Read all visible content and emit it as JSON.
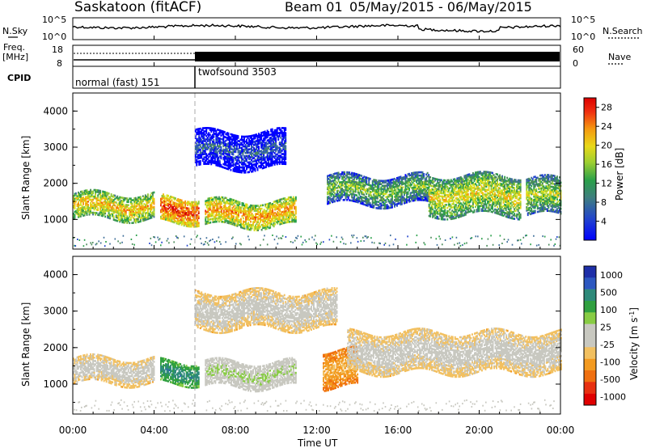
{
  "header": {
    "station": "Saskatoon (fitACF)",
    "beam_label": "Beam 01",
    "date_range": "05/May/2015 - 06/May/2015"
  },
  "summary_panels": {
    "nsky_label": "N.Sky",
    "nsearch_label": "N.Search",
    "noise_ticks_left": [
      "10^5",
      "10^0"
    ],
    "noise_ticks_right": [
      "10^5",
      "10^0"
    ],
    "freq_label": "Freq.",
    "freq_unit": "[MHz]",
    "freq_ticks": [
      "18",
      "8"
    ],
    "nave_label": "Nave",
    "nave_ticks": [
      "60",
      "0"
    ],
    "cpid_label": "CPID",
    "cpid_segments": [
      {
        "name": "normal (fast) 151",
        "start_hour": 0,
        "end_hour": 6
      },
      {
        "name": "twofsound 3503",
        "start_hour": 6,
        "end_hour": 24
      }
    ]
  },
  "power_colorbar": {
    "label": "Power [dB]",
    "ticks": [
      "28",
      "24",
      "20",
      "16",
      "12",
      "8",
      "4"
    ],
    "colors": [
      "#0000ff",
      "#2244cc",
      "#3f6f9a",
      "#4a8a5a",
      "#2aa04a",
      "#8fc83c",
      "#d8e020",
      "#f0c010",
      "#f59a10",
      "#f06010",
      "#e82010",
      "#cc0000"
    ]
  },
  "velocity_colorbar": {
    "label": "Velocity [m s^-1]",
    "ticks": [
      "1000",
      "500",
      "100",
      "25",
      "-25",
      "-100",
      "-500",
      "-1000"
    ],
    "colors": [
      "#1e2fa8",
      "#2d58c0",
      "#2e8a7a",
      "#30a040",
      "#88cc44",
      "#c8c8c0",
      "#c8c8c0",
      "#f2c060",
      "#f39a20",
      "#f07010",
      "#e83010",
      "#e00000"
    ]
  },
  "axes": {
    "ylabel": "Slant Range [km]",
    "xlabel": "Time UT",
    "xticks": [
      "00:00",
      "04:00",
      "08:00",
      "12:00",
      "16:00",
      "20:00",
      "00:00"
    ],
    "yticks": [
      "1000",
      "2000",
      "3000",
      "4000"
    ]
  },
  "chart_data": {
    "type": "heatmap",
    "title": "Saskatoon (fitACF) Beam 01 05/May/2015 - 06/May/2015",
    "xlabel": "Time UT",
    "ylabel": "Slant Range [km]",
    "xlim_hours": [
      0,
      24
    ],
    "ylim_km": [
      180,
      4500
    ],
    "power_range_db": [
      0,
      30
    ],
    "velocity_range_ms": [
      -1000,
      1000
    ],
    "cpid_change_hour": 6,
    "power_echo_regions": [
      {
        "t0": 0.0,
        "t1": 4.0,
        "r0": 1000,
        "r1": 1700,
        "power_db": 20
      },
      {
        "t0": 4.3,
        "t1": 6.2,
        "r0": 900,
        "r1": 1600,
        "power_db": 26
      },
      {
        "t0": 6.5,
        "t1": 11.0,
        "r0": 800,
        "r1": 1500,
        "power_db": 22
      },
      {
        "t0": 6.0,
        "t1": 10.5,
        "r0": 2400,
        "r1": 3400,
        "power_db": 6
      },
      {
        "t0": 12.5,
        "t1": 17.5,
        "r0": 1400,
        "r1": 2200,
        "power_db": 14
      },
      {
        "t0": 17.5,
        "t1": 22.0,
        "r0": 1100,
        "r1": 2200,
        "power_db": 18
      },
      {
        "t0": 22.3,
        "t1": 24.0,
        "r0": 1100,
        "r1": 2100,
        "power_db": 16
      }
    ],
    "velocity_echo_regions": [
      {
        "t0": 0.0,
        "t1": 4.0,
        "r0": 1000,
        "r1": 1700,
        "velocity_ms": 0
      },
      {
        "t0": 4.3,
        "t1": 6.2,
        "r0": 1000,
        "r1": 1600,
        "velocity_ms": 600
      },
      {
        "t0": 6.5,
        "t1": 11.0,
        "r0": 900,
        "r1": 1600,
        "velocity_ms": 200
      },
      {
        "t0": 12.3,
        "t1": 14.0,
        "r0": 900,
        "r1": 1900,
        "velocity_ms": -300
      },
      {
        "t0": 13.5,
        "t1": 24.0,
        "r0": 1300,
        "r1": 2400,
        "velocity_ms": 0
      },
      {
        "t0": 6.0,
        "t1": 13.0,
        "r0": 2500,
        "r1": 3500,
        "velocity_ms": 0
      }
    ]
  }
}
